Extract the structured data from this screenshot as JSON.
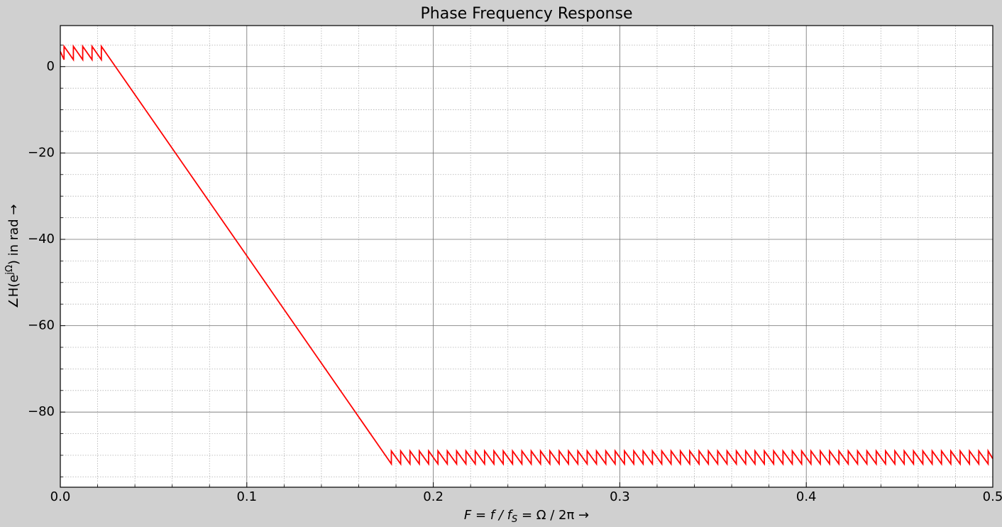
{
  "chart_data": {
    "type": "line",
    "title": "Phase Frequency Response",
    "xlabel": [
      "F = f / f",
      "S",
      " = Ω / 2π →"
    ],
    "ylabel": [
      "∠H(e",
      "jΩ",
      ") in rad →"
    ],
    "color": "#ff0000",
    "grid": true,
    "xlim": [
      0,
      0.5
    ],
    "ylim": [
      -97.4,
      9.5
    ],
    "xticks": [
      {
        "value": 0,
        "label": "0.0"
      },
      0.1,
      0.2,
      0.3,
      0.4,
      0.5
    ],
    "yticks": [
      0,
      {
        "value": -20,
        "label": "−20"
      },
      {
        "value": -40,
        "label": "−40"
      },
      {
        "value": -60,
        "label": "−60"
      },
      {
        "value": -80,
        "label": "−80"
      }
    ],
    "xminorticks": [
      0.02,
      0.04,
      0.06,
      0.08,
      0.12,
      0.14,
      0.16,
      0.18,
      0.22,
      0.24,
      0.26,
      0.28,
      0.32,
      0.34,
      0.36,
      0.38,
      0.42,
      0.44,
      0.46,
      0.48
    ],
    "yminorticks": [
      5,
      -5,
      -10,
      -15,
      -25,
      -30,
      -35,
      -45,
      -50,
      -55,
      -65,
      -70,
      -75,
      -85,
      -90,
      -95
    ],
    "x": [
      0,
      0.002,
      0.002,
      0.007,
      0.007,
      0.012,
      0.012,
      0.017,
      0.017,
      0.022,
      0.022,
      0.1775,
      0.1775,
      0.1825,
      0.1825,
      0.1875,
      0.1875,
      0.1925,
      0.1925,
      0.1975,
      0.1975,
      0.2025,
      0.2025,
      0.2075,
      0.2075,
      0.2125,
      0.2125,
      0.2175,
      0.2175,
      0.2225,
      0.2225,
      0.2275,
      0.2275,
      0.2325,
      0.2325,
      0.2375,
      0.2375,
      0.2425,
      0.2425,
      0.2475,
      0.2475,
      0.2525,
      0.2525,
      0.2575,
      0.2575,
      0.2625,
      0.2625,
      0.2675,
      0.2675,
      0.2725,
      0.2725,
      0.2775,
      0.2775,
      0.2825,
      0.2825,
      0.2875,
      0.2875,
      0.2925,
      0.2925,
      0.2975,
      0.2975,
      0.3025,
      0.3025,
      0.3075,
      0.3075,
      0.3125,
      0.3125,
      0.3175,
      0.3175,
      0.3225,
      0.3225,
      0.3275,
      0.3275,
      0.3325,
      0.3325,
      0.3375,
      0.3375,
      0.3425,
      0.3425,
      0.3475,
      0.3475,
      0.3525,
      0.3525,
      0.3575,
      0.3575,
      0.3625,
      0.3625,
      0.3675,
      0.3675,
      0.3725,
      0.3725,
      0.3775,
      0.3775,
      0.3825,
      0.3825,
      0.3875,
      0.3875,
      0.3925,
      0.3925,
      0.3975,
      0.3975,
      0.4025,
      0.4025,
      0.4075,
      0.4075,
      0.4125,
      0.4125,
      0.4175,
      0.4175,
      0.4225,
      0.4225,
      0.4275,
      0.4275,
      0.4325,
      0.4325,
      0.4375,
      0.4375,
      0.4425,
      0.4425,
      0.4475,
      0.4475,
      0.4525,
      0.4525,
      0.4575,
      0.4575,
      0.4625,
      0.4625,
      0.4675,
      0.4675,
      0.4725,
      0.4725,
      0.4775,
      0.4775,
      0.4825,
      0.4825,
      0.4875,
      0.4875,
      0.4925,
      0.4925,
      0.4975,
      0.4975,
      0.5
    ],
    "values": [
      3.5,
      1.6,
      4.7,
      1.6,
      4.7,
      1.6,
      4.7,
      1.6,
      4.7,
      1.6,
      4.7,
      -92,
      -89,
      -92,
      -89,
      -92,
      -89,
      -92,
      -89,
      -92,
      -89,
      -92,
      -89,
      -92,
      -89,
      -92,
      -89,
      -92,
      -89,
      -92,
      -89,
      -92,
      -89,
      -92,
      -89,
      -92,
      -89,
      -92,
      -89,
      -92,
      -89,
      -92,
      -89,
      -92,
      -89,
      -92,
      -89,
      -92,
      -89,
      -92,
      -89,
      -92,
      -89,
      -92,
      -89,
      -92,
      -89,
      -92,
      -89,
      -92,
      -89,
      -92,
      -89,
      -92,
      -89,
      -92,
      -89,
      -92,
      -89,
      -92,
      -89,
      -92,
      -89,
      -92,
      -89,
      -92,
      -89,
      -92,
      -89,
      -92,
      -89,
      -92,
      -89,
      -92,
      -89,
      -92,
      -89,
      -92,
      -89,
      -92,
      -89,
      -92,
      -89,
      -92,
      -89,
      -92,
      -89,
      -92,
      -89,
      -92,
      -89,
      -92,
      -89,
      -92,
      -89,
      -92,
      -89,
      -92,
      -89,
      -92,
      -89,
      -92,
      -89,
      -92,
      -89,
      -92,
      -89,
      -92,
      -89,
      -92,
      -89,
      -92,
      -89,
      -92,
      -89,
      -92,
      -89,
      -92,
      -89,
      -92,
      -89,
      -92,
      -89,
      -92,
      -89,
      -92,
      -89,
      -92,
      -89,
      -92,
      -89,
      -90.8
    ]
  }
}
